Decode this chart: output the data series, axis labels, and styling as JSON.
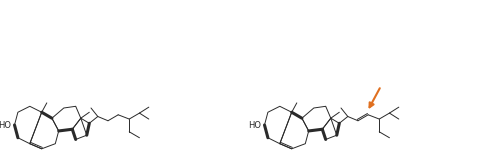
{
  "background_color": "#ffffff",
  "arrow_color": "#E07020",
  "line_color": "#2a2a2a",
  "ho_label": "HO",
  "figsize": [
    5.0,
    1.62
  ],
  "dpi": 100
}
